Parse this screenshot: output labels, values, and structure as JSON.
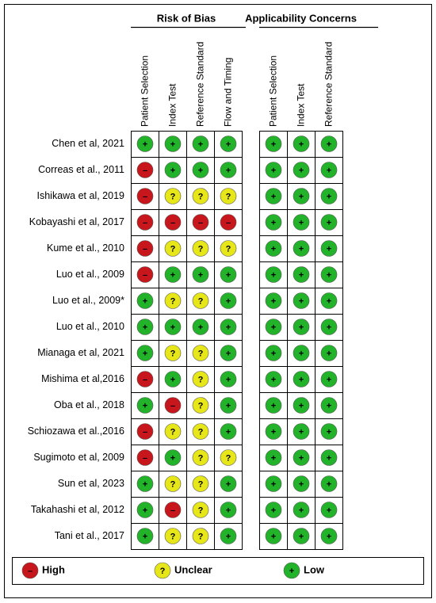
{
  "groups": [
    {
      "title": "Risk of Bias",
      "columns": [
        "Patient Selection",
        "Index Test",
        "Reference Standard",
        "Flow and Timing"
      ]
    },
    {
      "title": "Applicability Concerns",
      "columns": [
        "Patient Selection",
        "Index Test",
        "Reference Standard"
      ]
    }
  ],
  "legend": [
    {
      "symbol": "–",
      "label": "High",
      "color": "#c8161d"
    },
    {
      "symbol": "?",
      "label": "Unclear",
      "color": "#e6e619"
    },
    {
      "symbol": "+",
      "label": "Low",
      "color": "#22b32a"
    }
  ],
  "rows": [
    {
      "study": "Chen et al, 2021",
      "judgments": [
        [
          "+",
          "+",
          "+",
          "+"
        ],
        [
          "+",
          "+",
          "+"
        ]
      ]
    },
    {
      "study": "Correas et al., 2011",
      "judgments": [
        [
          "–",
          "+",
          "+",
          "+"
        ],
        [
          "+",
          "+",
          "+"
        ]
      ]
    },
    {
      "study": "Ishikawa et al, 2019",
      "judgments": [
        [
          "–",
          "?",
          "?",
          "?"
        ],
        [
          "+",
          "+",
          "+"
        ]
      ]
    },
    {
      "study": "Kobayashi et al, 2017",
      "judgments": [
        [
          "–",
          "–",
          "–",
          "–"
        ],
        [
          "+",
          "+",
          "+"
        ]
      ]
    },
    {
      "study": "Kume et al., 2010",
      "judgments": [
        [
          "–",
          "?",
          "?",
          "?"
        ],
        [
          "+",
          "+",
          "+"
        ]
      ]
    },
    {
      "study": "Luo et al., 2009",
      "judgments": [
        [
          "–",
          "+",
          "+",
          "+"
        ],
        [
          "+",
          "+",
          "+"
        ]
      ]
    },
    {
      "study": "Luo et al., 2009*",
      "judgments": [
        [
          "+",
          "?",
          "?",
          "+"
        ],
        [
          "+",
          "+",
          "+"
        ]
      ]
    },
    {
      "study": "Luo et al., 2010",
      "judgments": [
        [
          "+",
          "+",
          "+",
          "+"
        ],
        [
          "+",
          "+",
          "+"
        ]
      ]
    },
    {
      "study": "Mianaga et al, 2021",
      "judgments": [
        [
          "+",
          "?",
          "?",
          "+"
        ],
        [
          "+",
          "+",
          "+"
        ]
      ]
    },
    {
      "study": "Mishima et al,2016",
      "judgments": [
        [
          "–",
          "+",
          "?",
          "+"
        ],
        [
          "+",
          "+",
          "+"
        ]
      ]
    },
    {
      "study": "Oba et al., 2018",
      "judgments": [
        [
          "+",
          "–",
          "?",
          "+"
        ],
        [
          "+",
          "+",
          "+"
        ]
      ]
    },
    {
      "study": "Schiozawa et al.,2016",
      "judgments": [
        [
          "–",
          "?",
          "?",
          "+"
        ],
        [
          "+",
          "+",
          "+"
        ]
      ]
    },
    {
      "study": "Sugimoto et al, 2009",
      "judgments": [
        [
          "–",
          "+",
          "?",
          "?"
        ],
        [
          "+",
          "+",
          "+"
        ]
      ]
    },
    {
      "study": "Sun et al, 2023",
      "judgments": [
        [
          "+",
          "?",
          "?",
          "+"
        ],
        [
          "+",
          "+",
          "+"
        ]
      ]
    },
    {
      "study": "Takahashi et al, 2012",
      "judgments": [
        [
          "+",
          "–",
          "?",
          "+"
        ],
        [
          "+",
          "+",
          "+"
        ]
      ]
    },
    {
      "study": "Tani et al., 2017",
      "judgments": [
        [
          "+",
          "?",
          "?",
          "+"
        ],
        [
          "+",
          "+",
          "+"
        ]
      ]
    }
  ]
}
